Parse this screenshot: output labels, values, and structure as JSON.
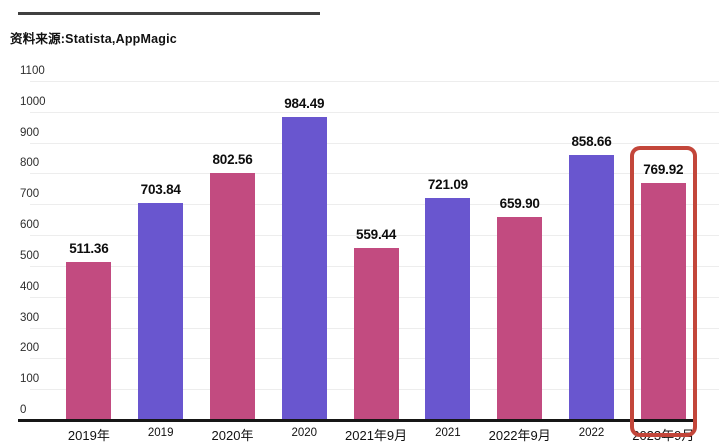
{
  "source_label": "资料来源:Statista,AppMagic",
  "colors": {
    "bar_crimson": "#c24b80",
    "bar_purple": "#6956cf",
    "highlight_red": "#c3463a",
    "gridline": "#ededed",
    "axis": "#161616",
    "title_rule": "#404040"
  },
  "chart_data": {
    "type": "bar",
    "title": "",
    "source_note": "资料来源:Statista,AppMagic",
    "categories": [
      "2019年",
      "2019",
      "2020年",
      "2020",
      "2021年9月",
      "2021",
      "2022年9月",
      "2022",
      "2023年9月"
    ],
    "values": [
      511.36,
      703.84,
      802.56,
      984.49,
      559.44,
      721.09,
      659.9,
      858.66,
      769.92
    ],
    "value_labels": [
      "511.36",
      "703.84",
      "802.56",
      "984.49",
      "559.44",
      "721.09",
      "659.90",
      "858.66",
      "769.92"
    ],
    "bar_color_pattern": [
      "#c24b80",
      "#6956cf"
    ],
    "ylim": [
      0,
      1100
    ],
    "ytick_labels": [
      "0",
      "100",
      "200",
      "300",
      "400",
      "500",
      "600",
      "700",
      "800",
      "900",
      "1000",
      "1100"
    ],
    "grid": true,
    "legend_position": "none",
    "highlight": {
      "index": 8,
      "category": "2023年9月",
      "value": 769.92,
      "style": "red-outline-box",
      "color": "#c3463a"
    }
  }
}
